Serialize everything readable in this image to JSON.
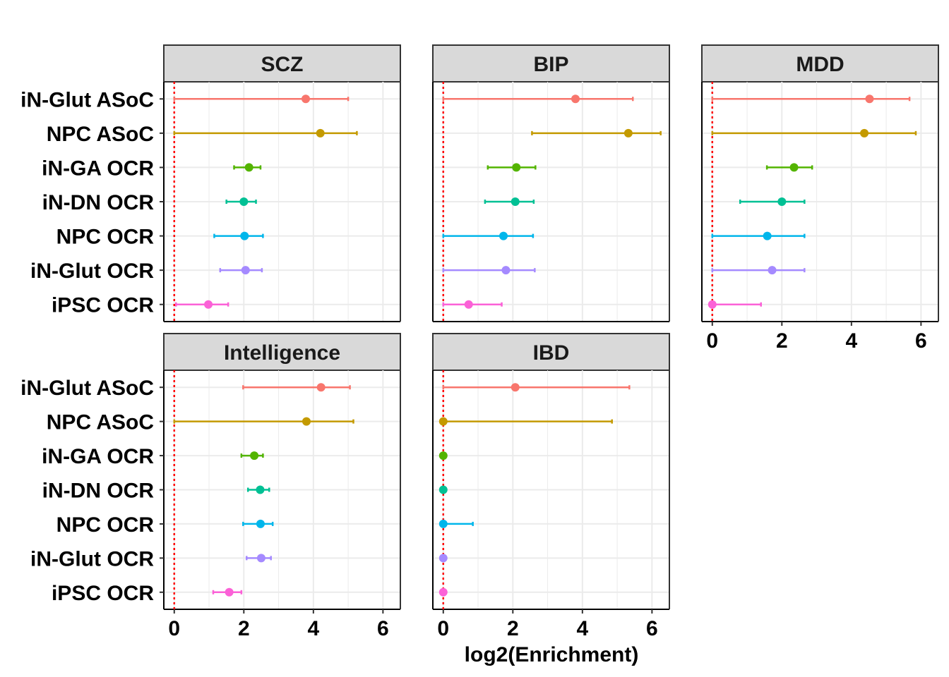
{
  "chart_data": {
    "type": "forest",
    "xlabel": "log2(Enrichment)",
    "xlim": [
      -0.3,
      6.5
    ],
    "xticks": [
      0,
      2,
      4,
      6
    ],
    "reference_line": {
      "x": 0,
      "color": "#ff0000",
      "style": "dotted"
    },
    "grid": true,
    "categories": [
      "iN-Glut ASoC",
      "NPC ASoC",
      "iN-GA OCR",
      "iN-DN OCR",
      "NPC OCR",
      "iN-Glut OCR",
      "iPSC OCR"
    ],
    "colors": {
      "iN-Glut ASoC": "#f8766d",
      "NPC ASoC": "#c49a00",
      "iN-GA OCR": "#53b400",
      "iN-DN OCR": "#00c094",
      "NPC OCR": "#00b6eb",
      "iN-Glut OCR": "#a58aff",
      "iPSC OCR": "#fb61d7"
    },
    "panels": [
      {
        "title": "SCZ",
        "points": [
          {
            "category": "iN-Glut ASoC",
            "estimate": 3.78,
            "lower": 0.0,
            "upper": 5.0
          },
          {
            "category": "NPC ASoC",
            "estimate": 4.2,
            "lower": 0.0,
            "upper": 5.25
          },
          {
            "category": "iN-GA OCR",
            "estimate": 2.15,
            "lower": 1.72,
            "upper": 2.48
          },
          {
            "category": "iN-DN OCR",
            "estimate": 2.0,
            "lower": 1.5,
            "upper": 2.35
          },
          {
            "category": "NPC OCR",
            "estimate": 2.02,
            "lower": 1.15,
            "upper": 2.55
          },
          {
            "category": "iN-Glut OCR",
            "estimate": 2.05,
            "lower": 1.32,
            "upper": 2.52
          },
          {
            "category": "iPSC OCR",
            "estimate": 0.98,
            "lower": 0.05,
            "upper": 1.55
          }
        ]
      },
      {
        "title": "BIP",
        "points": [
          {
            "category": "iN-Glut ASoC",
            "estimate": 3.8,
            "lower": 0.0,
            "upper": 5.45
          },
          {
            "category": "NPC ASoC",
            "estimate": 5.32,
            "lower": 2.55,
            "upper": 6.25
          },
          {
            "category": "iN-GA OCR",
            "estimate": 2.1,
            "lower": 1.28,
            "upper": 2.65
          },
          {
            "category": "iN-DN OCR",
            "estimate": 2.07,
            "lower": 1.2,
            "upper": 2.6
          },
          {
            "category": "NPC OCR",
            "estimate": 1.73,
            "lower": 0.0,
            "upper": 2.58
          },
          {
            "category": "iN-Glut OCR",
            "estimate": 1.8,
            "lower": 0.0,
            "upper": 2.63
          },
          {
            "category": "iPSC OCR",
            "estimate": 0.73,
            "lower": 0.0,
            "upper": 1.68
          }
        ]
      },
      {
        "title": "MDD",
        "points": [
          {
            "category": "iN-Glut ASoC",
            "estimate": 4.52,
            "lower": 0.0,
            "upper": 5.67
          },
          {
            "category": "NPC ASoC",
            "estimate": 4.37,
            "lower": 0.0,
            "upper": 5.85
          },
          {
            "category": "iN-GA OCR",
            "estimate": 2.35,
            "lower": 1.57,
            "upper": 2.87
          },
          {
            "category": "iN-DN OCR",
            "estimate": 2.0,
            "lower": 0.8,
            "upper": 2.65
          },
          {
            "category": "NPC OCR",
            "estimate": 1.58,
            "lower": 0.0,
            "upper": 2.65
          },
          {
            "category": "iN-Glut OCR",
            "estimate": 1.72,
            "lower": 0.0,
            "upper": 2.65
          },
          {
            "category": "iPSC OCR",
            "estimate": 0.0,
            "lower": 0.0,
            "upper": 1.4
          }
        ]
      },
      {
        "title": "Intelligence",
        "points": [
          {
            "category": "iN-Glut ASoC",
            "estimate": 4.22,
            "lower": 1.98,
            "upper": 5.05
          },
          {
            "category": "NPC ASoC",
            "estimate": 3.8,
            "lower": 0.0,
            "upper": 5.15
          },
          {
            "category": "iN-GA OCR",
            "estimate": 2.3,
            "lower": 1.93,
            "upper": 2.55
          },
          {
            "category": "iN-DN OCR",
            "estimate": 2.47,
            "lower": 2.12,
            "upper": 2.73
          },
          {
            "category": "NPC OCR",
            "estimate": 2.48,
            "lower": 1.98,
            "upper": 2.83
          },
          {
            "category": "iN-Glut OCR",
            "estimate": 2.5,
            "lower": 2.08,
            "upper": 2.78
          },
          {
            "category": "iPSC OCR",
            "estimate": 1.58,
            "lower": 1.12,
            "upper": 1.93
          }
        ]
      },
      {
        "title": "IBD",
        "points": [
          {
            "category": "iN-Glut ASoC",
            "estimate": 2.07,
            "lower": 0.0,
            "upper": 5.35
          },
          {
            "category": "NPC ASoC",
            "estimate": 0.0,
            "lower": 0.0,
            "upper": 4.85
          },
          {
            "category": "iN-GA OCR",
            "estimate": 0.0,
            "lower": 0.0,
            "upper": 0.0
          },
          {
            "category": "iN-DN OCR",
            "estimate": 0.0,
            "lower": 0.0,
            "upper": 0.0
          },
          {
            "category": "NPC OCR",
            "estimate": 0.0,
            "lower": 0.0,
            "upper": 0.85
          },
          {
            "category": "iN-Glut OCR",
            "estimate": 0.0,
            "lower": 0.0,
            "upper": 0.0
          },
          {
            "category": "iPSC OCR",
            "estimate": 0.0,
            "lower": 0.0,
            "upper": 0.0
          }
        ]
      }
    ]
  }
}
